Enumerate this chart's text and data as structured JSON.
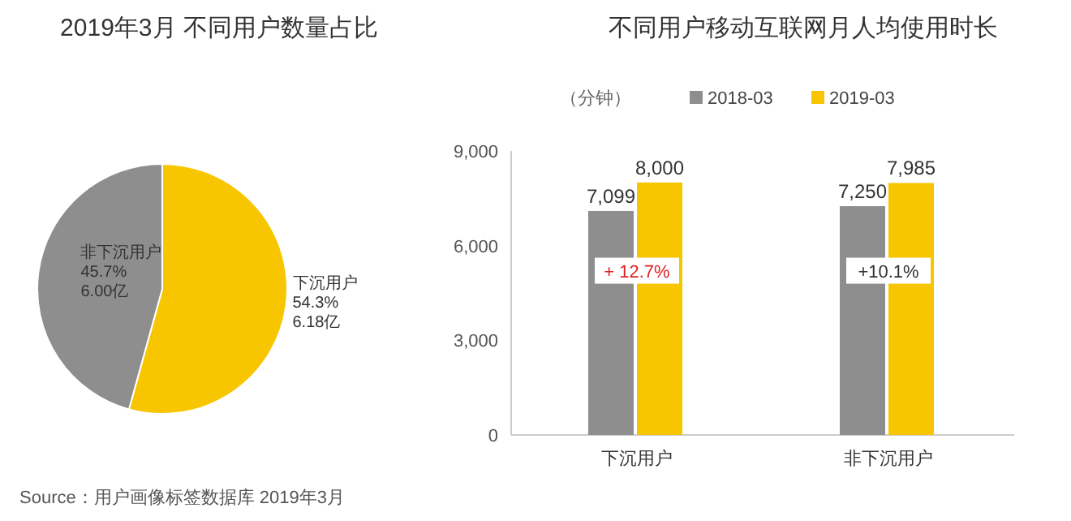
{
  "chart_data": [
    {
      "type": "pie",
      "title": "2019年3月 不同用户数量占比",
      "categories": [
        "下沉用户",
        "非下沉用户"
      ],
      "values": [
        54.3,
        45.7
      ],
      "colors": [
        "#f7c600",
        "#8e8e8e"
      ],
      "value_labels": [
        "54.3%\n6.18亿",
        "45.7%\n6.00亿"
      ],
      "annotations": [
        "Source：用户画像标签数据库 2019年3月"
      ]
    },
    {
      "type": "bar",
      "title": "不同用户移动互联网月人均使用时长",
      "ylabel": "（分钟）",
      "categories": [
        "下沉用户",
        "非下沉用户"
      ],
      "series": [
        {
          "name": "2018-03",
          "color": "#8e8e8e",
          "values": [
            7099,
            7250
          ],
          "value_labels": [
            "7,099",
            "7,250"
          ]
        },
        {
          "name": "2019-03",
          "color": "#f7c600",
          "values": [
            8000,
            7985
          ],
          "value_labels": [
            "8,000",
            "7,985"
          ]
        }
      ],
      "ylim": [
        0,
        9000
      ],
      "yticks": [
        {
          "value": 0,
          "label": "0"
        },
        {
          "value": 3000,
          "label": "3,000"
        },
        {
          "value": 6000,
          "label": "6,000"
        },
        {
          "value": 9000,
          "label": "9,000"
        }
      ],
      "legend": "top",
      "grid": false,
      "annotations": [
        {
          "text": "+ 12.7%",
          "x": "下沉用户",
          "y": 5000
        },
        {
          "text": "+10.1%",
          "x": "非下沉用户",
          "y": 5000
        }
      ]
    }
  ]
}
